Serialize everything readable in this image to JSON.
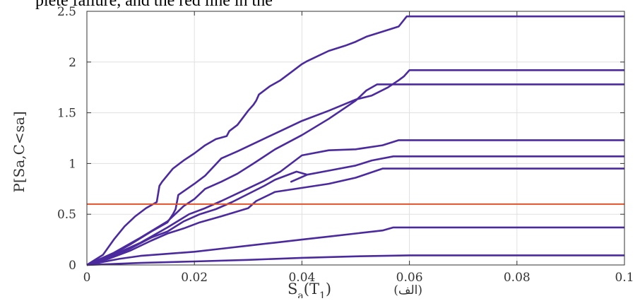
{
  "page": {
    "caption_fragment": "plete failure, and the red line in the"
  },
  "chart_data": {
    "type": "line",
    "title": "",
    "xlabel": "Sa(T1)",
    "xlabel_main": "S",
    "xlabel_sub_a": "a",
    "xlabel_paren": "(T",
    "xlabel_sub_1": "1",
    "xlabel_close": ")",
    "xlabel_arabic": "(الف)",
    "ylabel": "P[Sa,C<sa]",
    "xlim": [
      0,
      0.1
    ],
    "ylim": [
      0,
      2.5
    ],
    "xticks": [
      0,
      0.02,
      0.04,
      0.06,
      0.08,
      0.1
    ],
    "xtick_labels": [
      "0",
      "0.02",
      "0.04",
      "0.06",
      "0.08",
      "0.1"
    ],
    "yticks": [
      0,
      0.5,
      1,
      1.5,
      2,
      2.5
    ],
    "ytick_labels": [
      "0",
      "0.5",
      "1",
      "1.5",
      "2",
      "2.5"
    ],
    "grid": true,
    "colors": {
      "series": "#4B2A9E",
      "threshold": "#E2532A",
      "grid": "#e0e0e0",
      "axis": "#333333"
    },
    "threshold": {
      "y": 0.6
    },
    "series": [
      {
        "x": [
          0,
          0.003,
          0.005,
          0.007,
          0.009,
          0.011,
          0.013,
          0.0135,
          0.014,
          0.016,
          0.018,
          0.02,
          0.022,
          0.024,
          0.026,
          0.0265,
          0.028,
          0.029,
          0.03,
          0.031,
          0.0315,
          0.032,
          0.034,
          0.036,
          0.038,
          0.04,
          0.041,
          0.043,
          0.045,
          0.048,
          0.05,
          0.052,
          0.055,
          0.058,
          0.0595,
          0.1
        ],
        "y": [
          0,
          0.1,
          0.25,
          0.38,
          0.48,
          0.56,
          0.62,
          0.78,
          0.82,
          0.95,
          1.03,
          1.1,
          1.18,
          1.24,
          1.27,
          1.32,
          1.38,
          1.45,
          1.52,
          1.58,
          1.62,
          1.68,
          1.76,
          1.82,
          1.9,
          1.98,
          2.01,
          2.06,
          2.11,
          2.16,
          2.2,
          2.25,
          2.3,
          2.35,
          2.45,
          2.45
        ]
      },
      {
        "x": [
          0,
          0.004,
          0.008,
          0.012,
          0.015,
          0.016,
          0.0165,
          0.017,
          0.02,
          0.022,
          0.025,
          0.028,
          0.032,
          0.036,
          0.04,
          0.045,
          0.05,
          0.053,
          0.056,
          0.058,
          0.059,
          0.06,
          0.1
        ],
        "y": [
          0,
          0.08,
          0.2,
          0.33,
          0.42,
          0.5,
          0.55,
          0.69,
          0.8,
          0.88,
          1.05,
          1.12,
          1.22,
          1.32,
          1.42,
          1.52,
          1.63,
          1.67,
          1.75,
          1.82,
          1.86,
          1.92,
          1.92
        ]
      },
      {
        "x": [
          0,
          0.005,
          0.01,
          0.015,
          0.018,
          0.02,
          0.022,
          0.025,
          0.028,
          0.031,
          0.035,
          0.04,
          0.045,
          0.05,
          0.052,
          0.054,
          0.1
        ],
        "y": [
          0,
          0.12,
          0.27,
          0.43,
          0.58,
          0.65,
          0.75,
          0.82,
          0.9,
          1.0,
          1.14,
          1.28,
          1.44,
          1.62,
          1.72,
          1.78,
          1.78
        ]
      },
      {
        "x": [
          0,
          0.005,
          0.01,
          0.015,
          0.019,
          0.022,
          0.025,
          0.029,
          0.033,
          0.036,
          0.038,
          0.04,
          0.045,
          0.05,
          0.055,
          0.058,
          0.1
        ],
        "y": [
          0,
          0.1,
          0.22,
          0.37,
          0.5,
          0.56,
          0.63,
          0.73,
          0.83,
          0.92,
          1.0,
          1.08,
          1.13,
          1.14,
          1.18,
          1.23,
          1.23
        ]
      },
      {
        "x": [
          0,
          0.004,
          0.008,
          0.012,
          0.015,
          0.018,
          0.021,
          0.024,
          0.027,
          0.03,
          0.033,
          0.035,
          0.037,
          0.039,
          0.041,
          0.038,
          0.041,
          0.045,
          0.05,
          0.053,
          0.057,
          0.1
        ],
        "y": [
          0,
          0.07,
          0.16,
          0.27,
          0.33,
          0.43,
          0.5,
          0.55,
          0.62,
          0.7,
          0.78,
          0.84,
          0.88,
          0.92,
          0.89,
          0.82,
          0.89,
          0.93,
          0.98,
          1.03,
          1.07,
          1.07
        ]
      },
      {
        "x": [
          0,
          0.004,
          0.008,
          0.012,
          0.015,
          0.018,
          0.021,
          0.025,
          0.03,
          0.0315,
          0.035,
          0.04,
          0.045,
          0.05,
          0.055,
          0.1
        ],
        "y": [
          0,
          0.06,
          0.14,
          0.24,
          0.31,
          0.36,
          0.42,
          0.48,
          0.56,
          0.63,
          0.72,
          0.76,
          0.8,
          0.86,
          0.95,
          0.95
        ]
      },
      {
        "x": [
          0,
          0.003,
          0.006,
          0.01,
          0.015,
          0.02,
          0.025,
          0.03,
          0.035,
          0.04,
          0.045,
          0.05,
          0.055,
          0.057,
          0.1
        ],
        "y": [
          0,
          0.03,
          0.06,
          0.09,
          0.11,
          0.13,
          0.16,
          0.19,
          0.22,
          0.25,
          0.28,
          0.31,
          0.34,
          0.37,
          0.37
        ]
      },
      {
        "x": [
          0,
          0.005,
          0.01,
          0.02,
          0.03,
          0.04,
          0.05,
          0.06,
          0.1
        ],
        "y": [
          0,
          0.01,
          0.02,
          0.035,
          0.05,
          0.07,
          0.085,
          0.095,
          0.095
        ]
      }
    ]
  }
}
